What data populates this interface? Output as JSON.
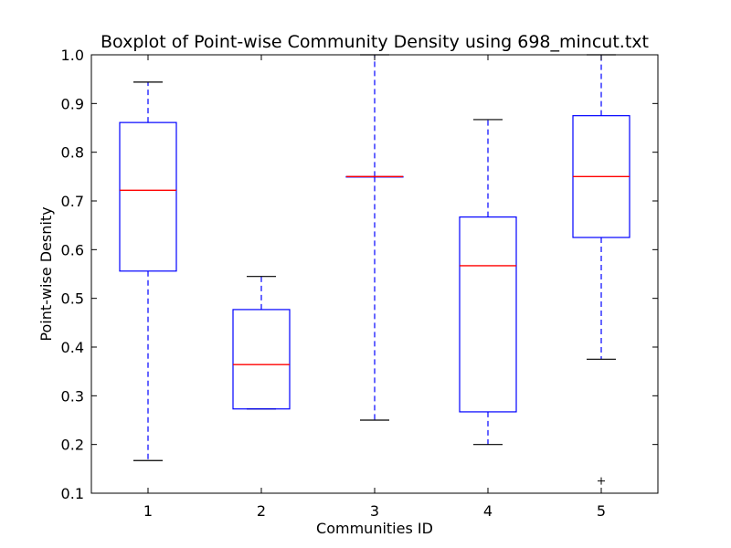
{
  "chart_data": {
    "type": "boxplot",
    "title": "Boxplot of Point-wise Community Density using 698_mincut.txt",
    "xlabel": "Communities ID",
    "ylabel": "Point-wise Desnity",
    "ylim": [
      0.1,
      1.0
    ],
    "yticks": [
      "0.1",
      "0.2",
      "0.3",
      "0.4",
      "0.5",
      "0.6",
      "0.7",
      "0.8",
      "0.9",
      "1.0"
    ],
    "categories": [
      "1",
      "2",
      "3",
      "4",
      "5"
    ],
    "boxes": [
      {
        "id": "1",
        "whisker_low": 0.167,
        "q1": 0.556,
        "median": 0.722,
        "q3": 0.861,
        "whisker_high": 0.944,
        "outliers": []
      },
      {
        "id": "2",
        "whisker_low": 0.273,
        "q1": 0.273,
        "median": 0.364,
        "q3": 0.477,
        "whisker_high": 0.545,
        "outliers": []
      },
      {
        "id": "3",
        "whisker_low": 0.25,
        "q1": 0.75,
        "median": 0.75,
        "q3": 0.75,
        "whisker_high": 1.0,
        "outliers": []
      },
      {
        "id": "4",
        "whisker_low": 0.2,
        "q1": 0.267,
        "median": 0.567,
        "q3": 0.667,
        "whisker_high": 0.867,
        "outliers": []
      },
      {
        "id": "5",
        "whisker_low": 0.375,
        "q1": 0.625,
        "median": 0.75,
        "q3": 0.875,
        "whisker_high": 1.0,
        "outliers": [
          0.125
        ]
      }
    ],
    "grid": false,
    "colors": {
      "box": "#0000ff",
      "median": "#ff0000",
      "whisker": "#0000ff",
      "cap": "#000000",
      "outlier": "#000000"
    }
  }
}
